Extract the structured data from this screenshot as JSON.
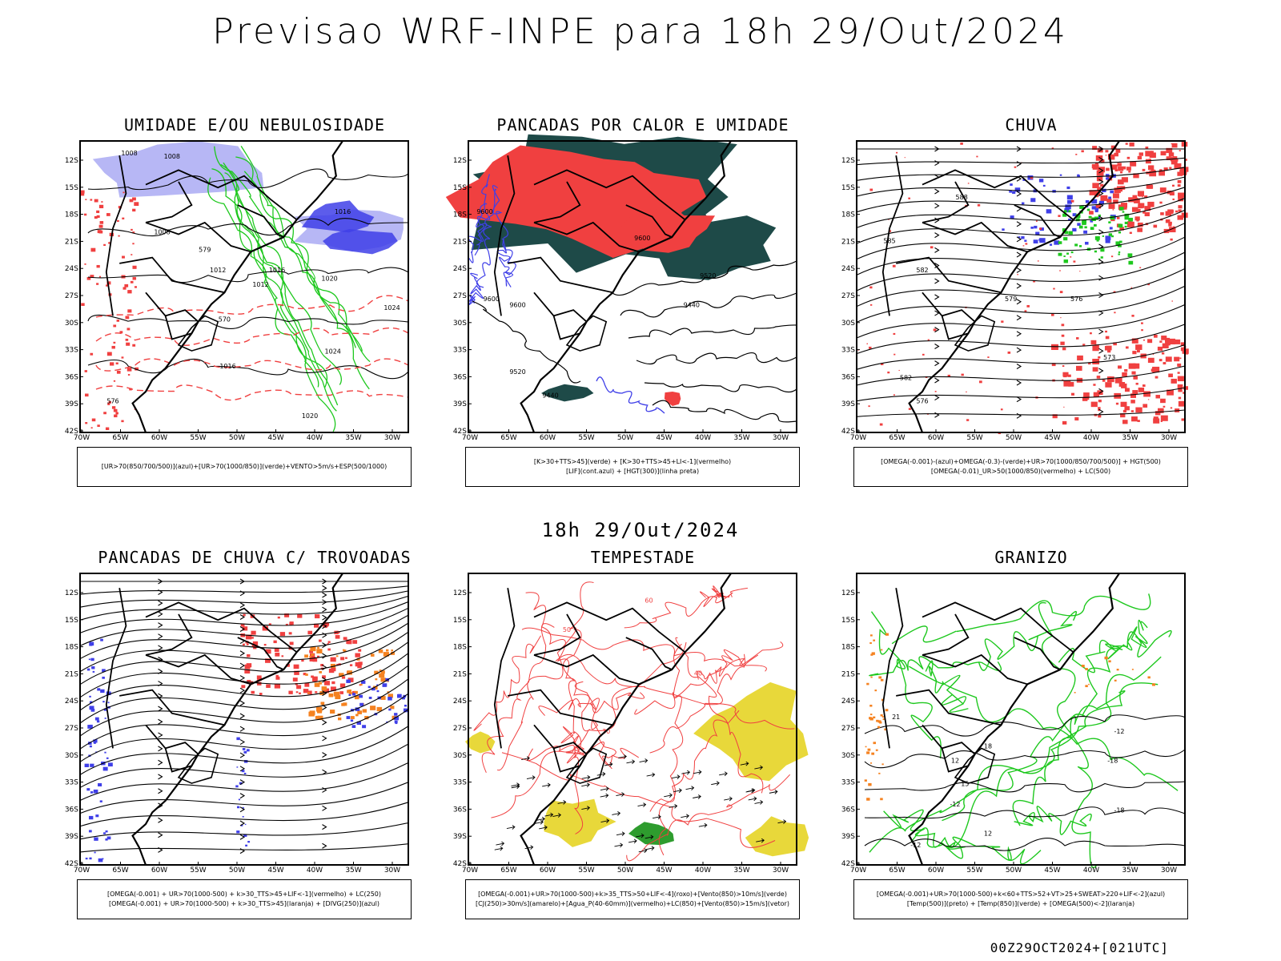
{
  "title": "Previsao WRF-INPE  para 18h 29/Out/2024",
  "subtitle": "18h 29/Out/2024",
  "footer": "00Z29OCT2024+[021UTC]",
  "lat_labels": [
    "12S",
    "15S",
    "18S",
    "21S",
    "24S",
    "27S",
    "30S",
    "33S",
    "36S",
    "39S",
    "42S"
  ],
  "lon_labels": [
    "70W",
    "65W",
    "60W",
    "55W",
    "50W",
    "45W",
    "40W",
    "35W",
    "30W"
  ],
  "panels": [
    {
      "id": "umidade",
      "title": "UMIDADE E/OU NEBULOSIDADE",
      "legend": [
        "[UR>70(850/700/500)](azul)+[UR>70(1000/850)](verde)+VENTO>5m/s+ESP(500/1000)"
      ],
      "labels": [
        "1008",
        "1008",
        "1008",
        "1012",
        "1012",
        "1016",
        "1020",
        "1024",
        "1024",
        "1016",
        "1020",
        "576",
        "570",
        "579",
        "1016"
      ]
    },
    {
      "id": "pancadas-calor",
      "title": "PANCADAS POR CALOR E UMIDADE",
      "legend": [
        "[K>30+TTS>45](verde) + [K>30+TTS>45+LI<-1](vermelho)",
        "[LIF](cont.azul) + [HGT(300)](linha preta)"
      ],
      "labels": [
        "9600",
        "9600",
        "9600",
        "9520",
        "9440",
        "9600",
        "9520",
        "9440"
      ]
    },
    {
      "id": "chuva",
      "title": "CHUVA",
      "legend": [
        "[OMEGA(-0.001)-(azul)+OMEGA(-0.3)-(verde)+UR>70(1000/850/700/500)] + HGT(500)",
        "[OMEGA(-0.01)_UR>50(1000/850)(vermelho) + LC(500)"
      ],
      "labels": [
        "588",
        "585",
        "582",
        "579",
        "576",
        "573",
        "582",
        "576"
      ]
    },
    {
      "id": "trovoadas",
      "title": "PANCADAS DE CHUVA C/ TROVOADAS",
      "legend": [
        "[OMEGA(-0.001) + UR>70(1000-500) + k>30_TTS>45+LIF<-1](vermelho) + LC(250)",
        "[OMEGA(-0.001) + UR>70(1000-500) + k>30_TTS>45](laranja) + [DIVG(250)](azul)"
      ],
      "labels": []
    },
    {
      "id": "tempestade",
      "title": "TEMPESTADE",
      "legend": [
        "[OMEGA(-0.001)+UR>70(1000-500)+k>35_TTS>50+LIF<-4](roxo)+[Vento(850)>10m/s](verde)",
        "[CJ(250)>30m/s](amarelo)+[Agua_P(40-60mm)](vermelho)+LC(850)+[Vento(850)>15m/s](vetor)"
      ],
      "labels": [
        "50",
        "60",
        "40",
        "30"
      ]
    },
    {
      "id": "granizo",
      "title": "GRANIZO",
      "legend": [
        "[OMEGA(-0.001)+UR>70(1000-500)+k<60+TTS>52+VT>25+SWEAT>220+LIF<-2](azul)",
        "[Temp(500)](preto) + [Temp(850)](verde) + [OMEGA(500)<-2](laranja)"
      ],
      "labels": [
        "-12",
        "-12",
        "-18",
        "-18",
        "-12",
        "12",
        "15",
        "18",
        "21",
        "12"
      ]
    }
  ],
  "colors": {
    "blue": "#3f3fe8",
    "lightblue": "#b7b7f5",
    "green": "#1ec81e",
    "red": "#f04040",
    "darkgreen": "#1e4a48",
    "yellow": "#e8d83a",
    "orange": "#f58220",
    "black": "#000000"
  }
}
